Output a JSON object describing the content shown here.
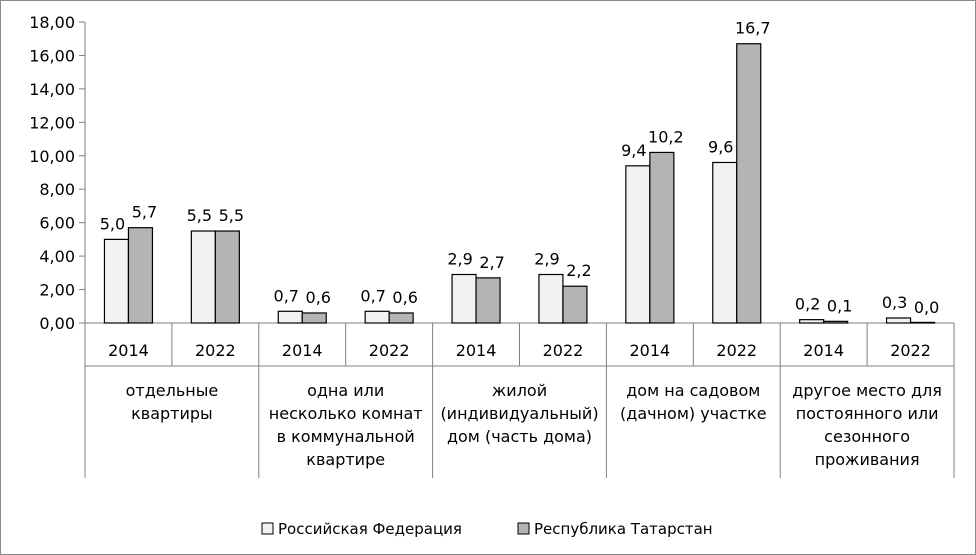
{
  "chart_data": {
    "type": "bar",
    "ylim": [
      0,
      18
    ],
    "y_ticks": [
      "0,00",
      "2,00",
      "4,00",
      "6,00",
      "8,00",
      "10,00",
      "12,00",
      "14,00",
      "16,00",
      "18,00"
    ],
    "grid": false,
    "legend_position": "bottom",
    "groups": [
      {
        "label_lines": [
          "отдельные",
          "квартиры"
        ],
        "years": [
          "2014",
          "2022"
        ]
      },
      {
        "label_lines": [
          "одна или",
          "несколько комнат",
          "в коммунальной",
          "квартире"
        ],
        "years": [
          "2014",
          "2022"
        ]
      },
      {
        "label_lines": [
          "жилой",
          "(индивидуальный)",
          "дом (часть дома)"
        ],
        "years": [
          "2014",
          "2022"
        ]
      },
      {
        "label_lines": [
          "дом на садовом",
          "(дачном) участке"
        ],
        "years": [
          "2014",
          "2022"
        ]
      },
      {
        "label_lines": [
          "другое место для",
          "постоянного или",
          "сезонного",
          "проживания"
        ],
        "years": [
          "2014",
          "2022"
        ]
      }
    ],
    "series": [
      {
        "name": "Российская Федерация",
        "color": "#f2f2f2",
        "values": [
          5.0,
          5.5,
          0.7,
          0.7,
          2.9,
          2.9,
          9.4,
          9.6,
          0.2,
          0.3
        ],
        "labels": [
          "5,0",
          "5,5",
          "0,7",
          "0,7",
          "2,9",
          "2,9",
          "9,4",
          "9,6",
          "0,2",
          "0,3"
        ]
      },
      {
        "name": "Республика Татарстан",
        "color": "#b4b4b4",
        "values": [
          5.7,
          5.5,
          0.6,
          0.6,
          2.7,
          2.2,
          10.2,
          16.7,
          0.1,
          0.0
        ],
        "labels": [
          "5,7",
          "5,5",
          "0,6",
          "0,6",
          "2,7",
          "2,2",
          "10,2",
          "16,7",
          "0,1",
          "0,0"
        ]
      }
    ]
  }
}
